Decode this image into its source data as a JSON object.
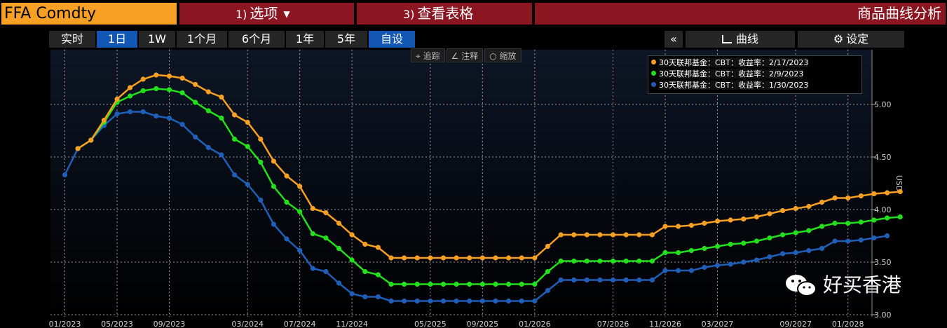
{
  "header": {
    "ticker": "FFA Comdty",
    "options_num": "1)",
    "options_label": "选项",
    "table_num": "3)",
    "table_label": "查看表格",
    "title": "商品曲线分析"
  },
  "range_tabs": [
    {
      "label": "实时",
      "active": false
    },
    {
      "label": "1日",
      "active": true
    },
    {
      "label": "1W",
      "active": false
    },
    {
      "label": "1个月",
      "active": false
    },
    {
      "label": "6个月",
      "active": false
    },
    {
      "label": "1年",
      "active": false
    },
    {
      "label": "5年",
      "active": false
    },
    {
      "label": "自设",
      "active": true
    }
  ],
  "right_controls": {
    "collapse": "«",
    "curve_label": "曲线",
    "settings_label": "设定"
  },
  "chart_tools": {
    "track": "追踪",
    "annotate": "注释",
    "zoom": "缩放"
  },
  "watermark": "好买香港",
  "chart_data": {
    "type": "line",
    "ylabel": "USD",
    "ylim": [
      2.98,
      5.52
    ],
    "yticks": [
      "3.00",
      "3.50",
      "4.00",
      "4.50",
      "5.00"
    ],
    "ytick_values": [
      3.0,
      3.5,
      4.0,
      4.5,
      5.0
    ],
    "xticks": [
      "01/2023",
      "05/2023",
      "09/2023",
      "03/2024",
      "07/2024",
      "11/2024",
      "05/2025",
      "09/2025",
      "01/2026",
      "07/2026",
      "11/2026",
      "03/2027",
      "09/2027",
      "01/2028"
    ],
    "xtick_months": [
      0,
      4,
      8,
      14,
      18,
      22,
      28,
      32,
      36,
      42,
      46,
      50,
      56,
      60
    ],
    "grid": true,
    "legend_position": "top-right",
    "series": [
      {
        "name": "30天联邦基金：CBT：收益率：2/17/2023",
        "color": "#f7a023",
        "start_month": 1,
        "values": [
          4.58,
          4.66,
          4.85,
          5.05,
          5.16,
          5.24,
          5.28,
          5.27,
          5.25,
          5.19,
          5.12,
          5.07,
          4.9,
          4.83,
          4.67,
          4.46,
          4.32,
          4.22,
          4.01,
          3.97,
          3.87,
          3.76,
          3.67,
          3.64,
          3.54,
          3.54,
          3.54,
          3.54,
          3.54,
          3.54,
          3.54,
          3.54,
          3.54,
          3.54,
          3.54,
          3.54,
          3.65,
          3.76,
          3.76,
          3.76,
          3.76,
          3.76,
          3.76,
          3.76,
          3.76,
          3.84,
          3.84,
          3.85,
          3.87,
          3.89,
          3.9,
          3.91,
          3.93,
          3.96,
          3.99,
          4.01,
          4.03,
          4.07,
          4.11,
          4.11,
          4.13,
          4.15,
          4.16,
          4.17
        ]
      },
      {
        "name": "30天联邦基金：CBT：收益率：2/9/2023",
        "color": "#22e01c",
        "start_month": 1,
        "values": [
          4.58,
          4.66,
          4.83,
          5.02,
          5.08,
          5.13,
          5.15,
          5.14,
          5.11,
          5.02,
          4.94,
          4.87,
          4.67,
          4.6,
          4.45,
          4.22,
          4.07,
          3.98,
          3.77,
          3.73,
          3.63,
          3.52,
          3.41,
          3.38,
          3.29,
          3.29,
          3.29,
          3.29,
          3.29,
          3.29,
          3.29,
          3.29,
          3.29,
          3.29,
          3.29,
          3.29,
          3.41,
          3.51,
          3.51,
          3.51,
          3.51,
          3.51,
          3.51,
          3.51,
          3.51,
          3.59,
          3.59,
          3.61,
          3.63,
          3.65,
          3.67,
          3.68,
          3.7,
          3.73,
          3.76,
          3.78,
          3.8,
          3.84,
          3.87,
          3.87,
          3.88,
          3.9,
          3.92,
          3.93
        ]
      },
      {
        "name": "30天联邦基金：CBT：收益率：1/30/2023",
        "color": "#1f5fb8",
        "start_month": 0,
        "values": [
          4.33,
          4.58,
          4.66,
          4.8,
          4.91,
          4.93,
          4.93,
          4.89,
          4.87,
          4.81,
          4.69,
          4.59,
          4.52,
          4.33,
          4.24,
          4.09,
          3.86,
          3.72,
          3.61,
          3.44,
          3.41,
          3.3,
          3.2,
          3.17,
          3.17,
          3.13,
          3.13,
          3.13,
          3.13,
          3.13,
          3.13,
          3.13,
          3.13,
          3.13,
          3.13,
          3.13,
          3.13,
          3.23,
          3.33,
          3.33,
          3.33,
          3.33,
          3.33,
          3.33,
          3.33,
          3.33,
          3.42,
          3.42,
          3.42,
          3.45,
          3.47,
          3.48,
          3.5,
          3.52,
          3.55,
          3.58,
          3.59,
          3.61,
          3.63,
          3.7,
          3.7,
          3.71,
          3.73,
          3.75
        ]
      }
    ]
  }
}
